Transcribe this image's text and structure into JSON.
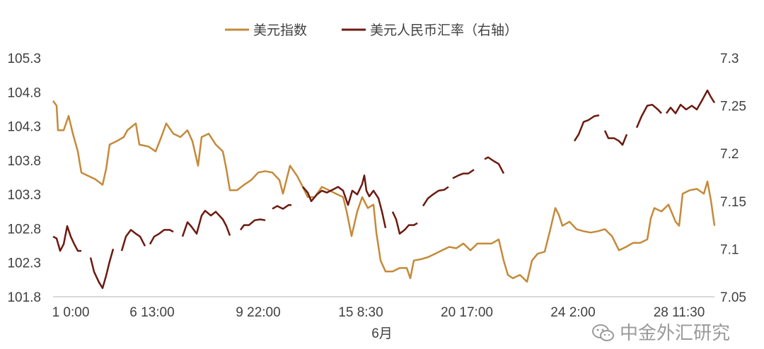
{
  "chart_data": {
    "type": "line",
    "title": "",
    "xlabel": "6月",
    "x_tick_labels": [
      {
        "index": 0,
        "label": "1 0:00"
      },
      {
        "index": 28,
        "label": "6 13:00"
      },
      {
        "index": 58,
        "label": "9 22:00"
      },
      {
        "index": 87,
        "label": "15 8:30"
      },
      {
        "index": 117,
        "label": "20 17:00"
      },
      {
        "index": 147,
        "label": "24 2:00"
      },
      {
        "index": 177,
        "label": "28 11:30"
      }
    ],
    "x_range": [
      0,
      187
    ],
    "y_left": {
      "ticks": [
        "105.3",
        "104.8",
        "104.3",
        "103.8",
        "103.3",
        "102.8",
        "102.3",
        "101.8"
      ],
      "range": [
        101.8,
        105.3
      ]
    },
    "y_right": {
      "ticks": [
        "7.3",
        "7.25",
        "7.2",
        "7.15",
        "7.1",
        "7.05"
      ],
      "range": [
        7.05,
        7.3
      ]
    },
    "grid": false,
    "legend_position": "top",
    "series": [
      {
        "name": "美元指数",
        "axis": "left",
        "color": "#C48A3A",
        "points": [
          [
            0,
            104.67
          ],
          [
            1,
            104.6
          ],
          [
            1.4,
            104.24
          ],
          [
            3,
            104.24
          ],
          [
            4.4,
            104.45
          ],
          [
            5.6,
            104.19
          ],
          [
            7,
            103.93
          ],
          [
            8,
            103.62
          ],
          [
            10,
            103.57
          ],
          [
            12,
            103.52
          ],
          [
            14,
            103.44
          ],
          [
            15,
            103.67
          ],
          [
            16,
            104.03
          ],
          [
            18,
            104.08
          ],
          [
            20,
            104.14
          ],
          [
            21,
            104.24
          ],
          [
            23.4,
            104.34
          ],
          [
            24.4,
            104.03
          ],
          [
            27,
            104.0
          ],
          [
            29,
            103.93
          ],
          [
            30.6,
            104.14
          ],
          [
            32,
            104.34
          ],
          [
            34,
            104.19
          ],
          [
            36,
            104.14
          ],
          [
            38,
            104.24
          ],
          [
            39.4,
            104.08
          ],
          [
            41,
            103.72
          ],
          [
            42,
            104.14
          ],
          [
            44,
            104.19
          ],
          [
            46,
            104.03
          ],
          [
            48,
            103.93
          ],
          [
            49,
            103.67
          ],
          [
            50,
            103.36
          ],
          [
            52,
            103.36
          ],
          [
            54,
            103.44
          ],
          [
            56,
            103.51
          ],
          [
            58,
            103.62
          ],
          [
            60,
            103.64
          ],
          [
            62,
            103.62
          ],
          [
            64,
            103.51
          ],
          [
            65,
            103.31
          ],
          [
            67,
            103.72
          ],
          [
            69,
            103.57
          ],
          [
            70.6,
            103.41
          ],
          [
            72,
            103.26
          ],
          [
            74,
            103.26
          ],
          [
            76,
            103.41
          ],
          [
            78,
            103.36
          ],
          [
            80,
            103.31
          ],
          [
            82,
            103.26
          ],
          [
            83,
            103.05
          ],
          [
            84.4,
            102.69
          ],
          [
            86,
            103.05
          ],
          [
            87.4,
            103.26
          ],
          [
            89,
            103.1
          ],
          [
            90.6,
            103.15
          ],
          [
            91.4,
            102.74
          ],
          [
            92.6,
            102.33
          ],
          [
            94,
            102.17
          ],
          [
            96,
            102.17
          ],
          [
            98,
            102.22
          ],
          [
            100,
            102.22
          ],
          [
            101,
            102.07
          ],
          [
            102,
            102.33
          ],
          [
            104,
            102.35
          ],
          [
            106,
            102.38
          ],
          [
            108,
            102.43
          ],
          [
            110,
            102.48
          ],
          [
            112,
            102.53
          ],
          [
            114,
            102.51
          ],
          [
            116,
            102.58
          ],
          [
            118,
            102.48
          ],
          [
            120,
            102.58
          ],
          [
            122,
            102.58
          ],
          [
            124,
            102.58
          ],
          [
            126,
            102.64
          ],
          [
            127.4,
            102.33
          ],
          [
            128.6,
            102.12
          ],
          [
            130,
            102.07
          ],
          [
            132,
            102.12
          ],
          [
            134,
            102.02
          ],
          [
            135.4,
            102.33
          ],
          [
            137,
            102.43
          ],
          [
            139,
            102.46
          ],
          [
            140.6,
            102.79
          ],
          [
            142,
            103.1
          ],
          [
            143,
            103.0
          ],
          [
            144,
            102.84
          ],
          [
            146,
            102.9
          ],
          [
            148,
            102.79
          ],
          [
            150,
            102.76
          ],
          [
            152,
            102.74
          ],
          [
            154,
            102.76
          ],
          [
            156,
            102.79
          ],
          [
            158,
            102.69
          ],
          [
            160,
            102.48
          ],
          [
            162,
            102.53
          ],
          [
            164,
            102.59
          ],
          [
            166,
            102.59
          ],
          [
            168,
            102.64
          ],
          [
            169,
            102.95
          ],
          [
            170,
            103.1
          ],
          [
            172,
            103.05
          ],
          [
            174,
            103.15
          ],
          [
            176,
            102.9
          ],
          [
            177,
            102.84
          ],
          [
            178,
            103.31
          ],
          [
            180,
            103.36
          ],
          [
            182,
            103.38
          ],
          [
            184,
            103.31
          ],
          [
            185,
            103.49
          ],
          [
            186,
            103.21
          ],
          [
            187,
            102.84
          ]
        ]
      },
      {
        "name": "美元人民币汇率（右轴）",
        "axis": "right",
        "color": "#6B1A10",
        "segments": [
          [
            [
              0,
              7.113
            ],
            [
              1,
              7.111
            ],
            [
              2,
              7.098
            ],
            [
              3,
              7.105
            ],
            [
              4,
              7.124
            ],
            [
              5,
              7.113
            ],
            [
              6,
              7.105
            ],
            [
              7,
              7.098
            ],
            [
              8,
              7.098
            ]
          ],
          [
            [
              10.6,
              7.091
            ],
            [
              11.6,
              7.076
            ],
            [
              13,
              7.065
            ],
            [
              14,
              7.059
            ],
            [
              15,
              7.072
            ],
            [
              16,
              7.087
            ],
            [
              17,
              7.1
            ]
          ],
          [
            [
              19.4,
              7.098
            ],
            [
              20.6,
              7.113
            ],
            [
              22,
              7.12
            ],
            [
              23.4,
              7.116
            ],
            [
              24.6,
              7.113
            ],
            [
              26,
              7.103
            ]
          ],
          [
            [
              27.4,
              7.105
            ],
            [
              28.6,
              7.113
            ],
            [
              30,
              7.116
            ],
            [
              31.4,
              7.12
            ],
            [
              33,
              7.12
            ],
            [
              34,
              7.118
            ]
          ],
          [
            [
              36.6,
              7.113
            ],
            [
              38,
              7.128
            ],
            [
              39,
              7.124
            ],
            [
              40.6,
              7.116
            ],
            [
              42,
              7.135
            ],
            [
              43,
              7.14
            ],
            [
              44.6,
              7.135
            ],
            [
              46,
              7.139
            ],
            [
              48,
              7.131
            ],
            [
              49,
              7.124
            ],
            [
              50,
              7.114
            ]
          ],
          [
            [
              53,
              7.12
            ],
            [
              54,
              7.125
            ],
            [
              55.4,
              7.125
            ],
            [
              57,
              7.13
            ],
            [
              58.6,
              7.131
            ],
            [
              60,
              7.13
            ]
          ],
          [
            [
              62,
              7.142
            ],
            [
              63.4,
              7.145
            ],
            [
              65,
              7.142
            ],
            [
              66.6,
              7.146
            ],
            [
              67.4,
              7.146
            ]
          ],
          [
            [
              70.6,
              7.165
            ],
            [
              72,
              7.159
            ],
            [
              73,
              7.15
            ],
            [
              74.6,
              7.157
            ],
            [
              76,
              7.161
            ],
            [
              77.4,
              7.159
            ],
            [
              79,
              7.162
            ],
            [
              80.6,
              7.165
            ],
            [
              82,
              7.161
            ],
            [
              83.4,
              7.146
            ],
            [
              84.6,
              7.161
            ],
            [
              86,
              7.157
            ],
            [
              87.4,
              7.168
            ],
            [
              88,
              7.177
            ],
            [
              88.6,
              7.161
            ],
            [
              89.4,
              7.155
            ],
            [
              90.6,
              7.161
            ],
            [
              92,
              7.153
            ],
            [
              93,
              7.139
            ],
            [
              94,
              7.122
            ]
          ],
          [
            [
              96,
              7.139
            ],
            [
              97,
              7.131
            ],
            [
              98,
              7.116
            ],
            [
              99.4,
              7.12
            ],
            [
              100.6,
              7.125
            ],
            [
              102,
              7.125
            ],
            [
              103,
              7.127
            ]
          ],
          [
            [
              104.6,
              7.145
            ],
            [
              106,
              7.153
            ],
            [
              107.4,
              7.157
            ],
            [
              109,
              7.161
            ],
            [
              110.6,
              7.162
            ],
            [
              111.8,
              7.165
            ]
          ],
          [
            [
              113,
              7.174
            ],
            [
              114.6,
              7.177
            ],
            [
              116,
              7.179
            ],
            [
              117.4,
              7.179
            ],
            [
              119,
              7.183
            ]
          ],
          [
            [
              122,
              7.194
            ],
            [
              123,
              7.196
            ],
            [
              124.6,
              7.192
            ],
            [
              126,
              7.189
            ],
            [
              127.4,
              7.179
            ]
          ],
          [
            [
              147.4,
              7.213
            ],
            [
              148.6,
              7.22
            ],
            [
              150,
              7.233
            ],
            [
              151.4,
              7.235
            ],
            [
              153,
              7.239
            ],
            [
              154.4,
              7.24
            ]
          ],
          [
            [
              156,
              7.224
            ],
            [
              157,
              7.216
            ],
            [
              158.6,
              7.216
            ],
            [
              160,
              7.213
            ],
            [
              161,
              7.209
            ],
            [
              162.2,
              7.22
            ]
          ],
          [
            [
              165,
              7.227
            ],
            [
              166.4,
              7.239
            ],
            [
              168,
              7.25
            ],
            [
              169.4,
              7.251
            ],
            [
              171,
              7.246
            ],
            [
              172,
              7.242
            ]
          ],
          [
            [
              173.4,
              7.242
            ],
            [
              174.6,
              7.248
            ],
            [
              176,
              7.242
            ],
            [
              177.4,
              7.251
            ],
            [
              179,
              7.246
            ],
            [
              180.6,
              7.25
            ],
            [
              182,
              7.246
            ],
            [
              183.4,
              7.255
            ],
            [
              185,
              7.266
            ],
            [
              186,
              7.259
            ],
            [
              187,
              7.253
            ]
          ]
        ]
      }
    ]
  },
  "watermark": "中金外汇研究"
}
